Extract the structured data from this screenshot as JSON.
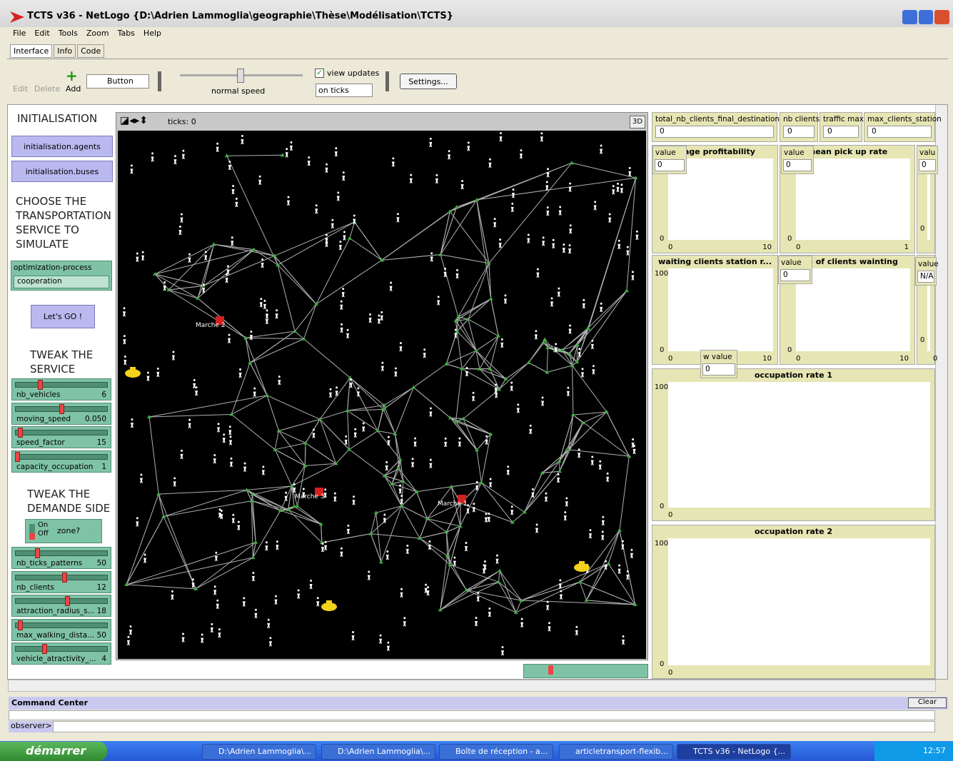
{
  "window": {
    "title": "TCTS v36 - NetLogo {D:\\Adrien Lammoglia\\geographie\\Thèse\\Modélisation\\TCTS}"
  },
  "menu": [
    "File",
    "Edit",
    "Tools",
    "Zoom",
    "Tabs",
    "Help"
  ],
  "tabs": [
    "Interface",
    "Info",
    "Code"
  ],
  "toolbar": {
    "edit": "Edit",
    "delete": "Delete",
    "add": "Add",
    "widget": "Button",
    "speed": "normal speed",
    "view_updates": "view updates",
    "update_mode": "on ticks",
    "settings": "Settings..."
  },
  "left": {
    "init_note": "INITIALISATION",
    "init_agents": "initialisation.agents",
    "init_buses": "initialisation.buses",
    "choose_note": "CHOOSE THE TRANSPORTATION SERVICE TO SIMULATE",
    "chooser": {
      "label": "optimization-process",
      "value": "cooperation"
    },
    "go": "Let's GO !",
    "service_note": "TWEAK THE SERVICE",
    "service_sliders": [
      {
        "name": "nb_vehicles",
        "value": "6"
      },
      {
        "name": "moving_speed",
        "value": "0.050"
      },
      {
        "name": "speed_factor",
        "value": "15"
      },
      {
        "name": "capacity_occupation",
        "value": "1"
      }
    ],
    "demand_note": "TWEAK THE DEMANDE SIDE",
    "switch": {
      "on": "On",
      "off": "Off",
      "label": "zone?"
    },
    "demand_sliders": [
      {
        "name": "nb_ticks_patterns",
        "value": "50"
      },
      {
        "name": "nb_clients",
        "value": "12"
      },
      {
        "name": "attraction_radius_s...",
        "value": "18"
      },
      {
        "name": "max_walking_dista...",
        "value": "50"
      },
      {
        "name": "vehicle_atractivity_...",
        "value": "4"
      }
    ]
  },
  "view": {
    "ticks": "ticks: 0",
    "three_d": "3D",
    "markets": [
      "Marche 2",
      "Marche 3",
      "Marche 1"
    ]
  },
  "monitors": [
    {
      "label": "total_nb_clients_final_destination",
      "value": "0"
    },
    {
      "label": "nb clients",
      "value": "0"
    },
    {
      "label": "traffic max",
      "value": "0"
    },
    {
      "label": "max_clients_station",
      "value": "0"
    }
  ],
  "plots": [
    {
      "title": "erage profitability",
      "ymin": "0",
      "xmin": "0",
      "xmax": "10"
    },
    {
      "title": "mean pick up rate",
      "ymin": "0",
      "xmin": "0",
      "xmax": "1"
    },
    {
      "ymin": "0"
    },
    {
      "title": "waiting clients station r...",
      "ymax": "100",
      "ymin": "0",
      "xmin": "0",
      "xmax": "10"
    },
    {
      "title": "ean of clients wainting",
      "ymin": "0",
      "xmin": "0",
      "xmax": "10"
    },
    {
      "ymin": "0",
      "xmin": "0"
    },
    {
      "title": "occupation rate 1",
      "ymax": "100",
      "ymin": "0",
      "xmin": "0"
    },
    {
      "title": "occupation rate 2",
      "ymax": "100",
      "ymin": "0",
      "xmin": "0"
    }
  ],
  "plot_monitors": [
    {
      "label": "value",
      "value": "0"
    },
    {
      "label": "value",
      "value": "0"
    },
    {
      "label": "valu",
      "value": "0"
    },
    {
      "label": "value",
      "value": "0"
    },
    {
      "label": "value",
      "value": "N/A"
    },
    {
      "label": "w value",
      "value": "0"
    }
  ],
  "command_center": {
    "title": "Command Center",
    "clear": "Clear",
    "prompt": "observer>"
  },
  "taskbar": {
    "start": "démarrer",
    "items": [
      "D:\\Adrien Lammoglia\\...",
      "D:\\Adrien Lammoglia\\...",
      "Boîte de réception - a...",
      "articletransport-flexib...",
      "TCTS v36 - NetLogo {..."
    ],
    "clock": "12:57"
  }
}
